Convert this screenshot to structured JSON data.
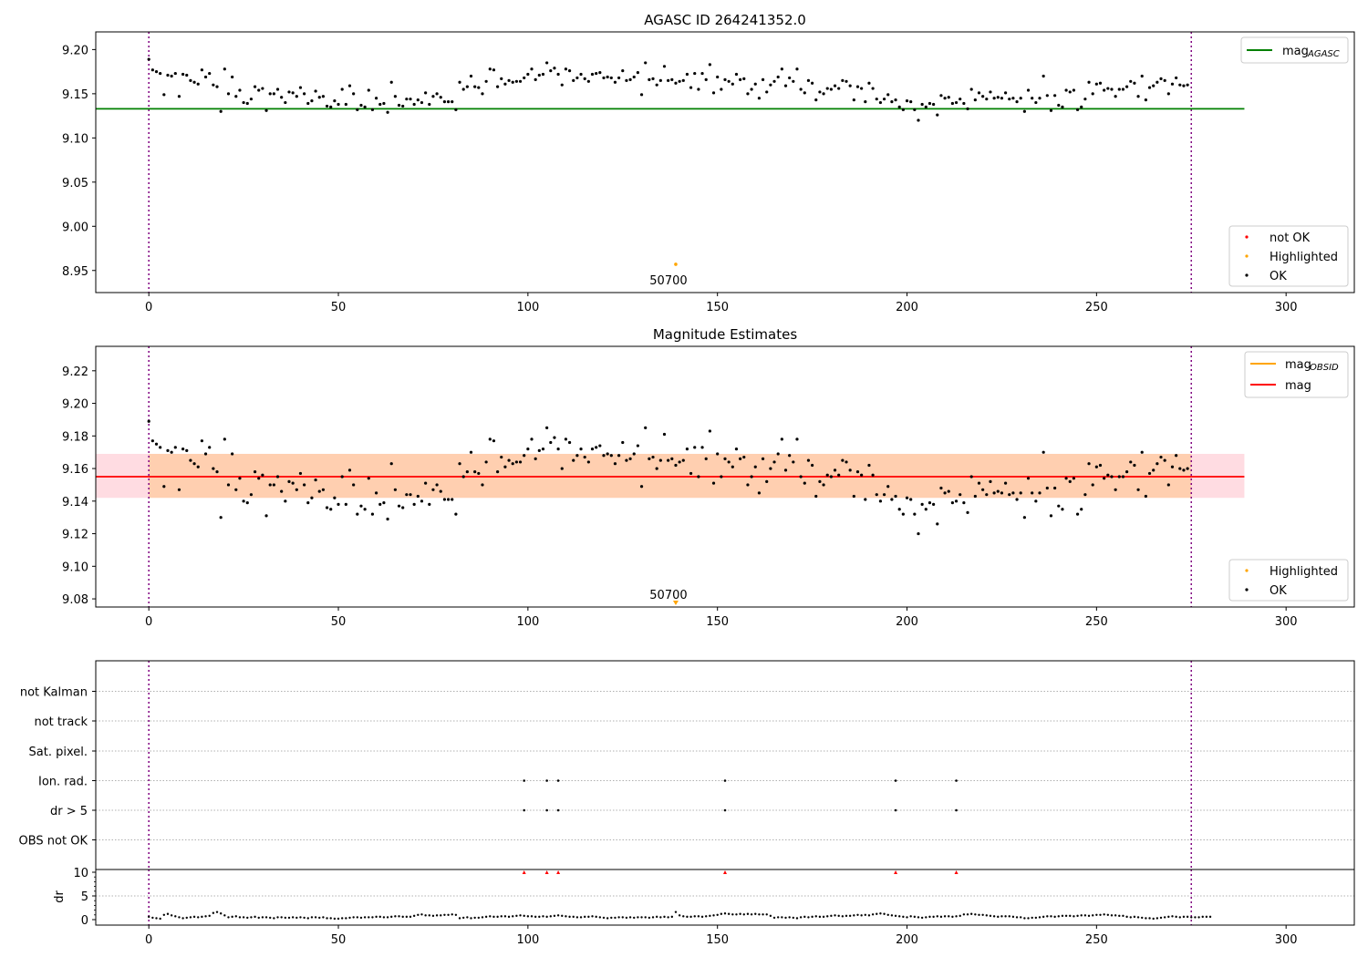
{
  "chart_data": [
    {
      "id": "top",
      "type": "scatter",
      "title": "AGASC ID 264241352.0",
      "xlim": [
        -14,
        318
      ],
      "ylim": [
        8.925,
        9.22
      ],
      "xticks": [
        0,
        50,
        100,
        150,
        200,
        250,
        300
      ],
      "xtick_labels": [
        "0",
        "50",
        "100",
        "150",
        "200",
        "250",
        "300"
      ],
      "yticks": [
        8.95,
        9.0,
        9.05,
        9.1,
        9.15,
        9.2
      ],
      "ytick_labels": [
        "8.95",
        "9.00",
        "9.05",
        "9.10",
        "9.15",
        "9.20"
      ],
      "vlines_x": [
        0,
        275
      ],
      "mag_agasc": 9.133,
      "mag_agasc_x": [
        -14,
        289
      ],
      "highlight": {
        "x": 139,
        "y": 8.957,
        "label": "50700"
      },
      "legend_upper": {
        "placement": "upper right",
        "entries": [
          {
            "label_main": "mag",
            "label_sub": "AGASC",
            "color": "#008000"
          }
        ]
      },
      "legend_lower": {
        "placement": "lower right",
        "entries": [
          {
            "label": "not OK",
            "color": "#ff0000"
          },
          {
            "label": "Highlighted",
            "color": "#ffa500"
          },
          {
            "label": "OK",
            "color": "#000000"
          }
        ]
      }
    },
    {
      "id": "middle",
      "type": "scatter",
      "title": "Magnitude Estimates",
      "xlim": [
        -14,
        318
      ],
      "ylim": [
        9.075,
        9.235
      ],
      "xticks": [
        0,
        50,
        100,
        150,
        200,
        250,
        300
      ],
      "xtick_labels": [
        "0",
        "50",
        "100",
        "150",
        "200",
        "250",
        "300"
      ],
      "yticks": [
        9.08,
        9.1,
        9.12,
        9.14,
        9.16,
        9.18,
        9.2,
        9.22
      ],
      "ytick_labels": [
        "9.08",
        "9.10",
        "9.12",
        "9.14",
        "9.16",
        "9.18",
        "9.20",
        "9.22"
      ],
      "vlines_x": [
        0,
        275
      ],
      "mag": 9.155,
      "mag_band": [
        9.142,
        9.169
      ],
      "obsid_band_x": [
        0,
        275
      ],
      "mag_x": [
        -14,
        289
      ],
      "highlight": {
        "x": 139,
        "y": 9.077,
        "label": "50700"
      },
      "legend_upper": {
        "placement": "upper right",
        "entries": [
          {
            "label_main": "mag",
            "label_sub": "OBSID",
            "color": "#ffa500"
          },
          {
            "label": "mag",
            "color": "#ff0000"
          }
        ]
      },
      "legend_lower": {
        "placement": "lower right",
        "entries": [
          {
            "label": "Highlighted",
            "color": "#ffa500"
          },
          {
            "label": "OK",
            "color": "#000000"
          }
        ]
      }
    },
    {
      "id": "flags",
      "type": "scatter",
      "xlim": [
        -14,
        318
      ],
      "categories": [
        "not Kalman",
        "not track",
        "Sat. pixel.",
        "Ion. rad.",
        "dr > 5",
        "OBS not OK"
      ],
      "flag_events": {
        "Ion. rad.": [
          99,
          105,
          108,
          152,
          197,
          213
        ],
        "dr > 5": [
          99,
          105,
          108,
          152,
          197,
          213
        ]
      },
      "vlines_x": [
        0,
        275
      ]
    },
    {
      "id": "dr",
      "type": "scatter",
      "xlim": [
        -14,
        318
      ],
      "ylim": [
        -0.5,
        10.5
      ],
      "ylabel": "dr",
      "yticks": [
        0,
        5,
        10
      ],
      "ytick_labels": [
        "0",
        "5",
        "10"
      ],
      "xticks": [
        0,
        50,
        100,
        150,
        200,
        250,
        300
      ],
      "xtick_labels": [
        "0",
        "50",
        "100",
        "150",
        "200",
        "250",
        "300"
      ],
      "clipped_x": [
        99,
        105,
        108,
        152,
        197,
        213
      ],
      "vlines_x": [
        0,
        275
      ],
      "dr_values": [
        0.6,
        0.4,
        0.3,
        0.2,
        1.0,
        1.2,
        0.9,
        0.7,
        0.5,
        0.3,
        0.4,
        0.5,
        0.6,
        0.5,
        0.6,
        0.7,
        0.8,
        1.4,
        1.6,
        1.3,
        0.9,
        0.5,
        0.6,
        0.7,
        0.5,
        0.5,
        0.4,
        0.5,
        0.6,
        0.4,
        0.5,
        0.5,
        0.4,
        0.3,
        0.5,
        0.5,
        0.4,
        0.4,
        0.5,
        0.4,
        0.5,
        0.4,
        0.3,
        0.5,
        0.5,
        0.4,
        0.5,
        0.3,
        0.3,
        0.2,
        0.2,
        0.3,
        0.3,
        0.4,
        0.5,
        0.5,
        0.4,
        0.5,
        0.5,
        0.5,
        0.6,
        0.6,
        0.5,
        0.5,
        0.6,
        0.7,
        0.7,
        0.6,
        0.6,
        0.6,
        0.8,
        1.0,
        1.1,
        0.9,
        0.9,
        0.8,
        0.9,
        0.9,
        1.0,
        1.0,
        1.1,
        1.0,
        0.3,
        0.4,
        0.5,
        0.3,
        0.4,
        0.4,
        0.5,
        0.6,
        0.7,
        0.6,
        0.6,
        0.7,
        0.7,
        0.6,
        0.7,
        0.8,
        0.9,
        0.8,
        0.7,
        0.7,
        0.6,
        0.6,
        0.7,
        0.6,
        0.7,
        0.8,
        0.9,
        0.8,
        0.7,
        0.6,
        0.6,
        0.5,
        0.5,
        0.6,
        0.6,
        0.7,
        0.6,
        0.5,
        0.4,
        0.3,
        0.4,
        0.4,
        0.5,
        0.5,
        0.4,
        0.5,
        0.4,
        0.5,
        0.5,
        0.5,
        0.4,
        0.5,
        0.6,
        0.5,
        0.6,
        0.5,
        0.6,
        1.6,
        0.9,
        0.7,
        0.6,
        0.6,
        0.7,
        0.7,
        0.6,
        0.7,
        0.8,
        0.9,
        1.0,
        1.2,
        1.3,
        1.2,
        1.1,
        1.1,
        1.2,
        1.1,
        1.2,
        1.1,
        1.2,
        1.1,
        1.1,
        1.1,
        0.8,
        0.4,
        0.5,
        0.5,
        0.4,
        0.5,
        0.4,
        0.3,
        0.5,
        0.6,
        0.5,
        0.6,
        0.7,
        0.6,
        0.6,
        0.7,
        0.8,
        0.9,
        0.8,
        0.7,
        0.8,
        0.8,
        0.9,
        1.0,
        0.9,
        1.0,
        0.9,
        1.1,
        1.2,
        1.3,
        1.2,
        1.0,
        0.9,
        0.8,
        0.7,
        0.6,
        0.5,
        0.7,
        0.6,
        0.5,
        0.4,
        0.5,
        0.6,
        0.6,
        0.7,
        0.6,
        0.7,
        0.7,
        0.6,
        0.7,
        0.8,
        1.1,
        1.1,
        1.2,
        1.1,
        1.0,
        1.0,
        0.9,
        0.8,
        0.7,
        0.6,
        0.7,
        0.7,
        0.7,
        0.6,
        0.5,
        0.5,
        0.3,
        0.3,
        0.4,
        0.4,
        0.5,
        0.6,
        0.7,
        0.7,
        0.6,
        0.7,
        0.8,
        0.8,
        0.8,
        0.7,
        0.8,
        0.9,
        0.9,
        0.8,
        0.9,
        1.0,
        1.0,
        1.1,
        1.0,
        0.9,
        0.9,
        0.8,
        0.8,
        0.6,
        0.5,
        0.6,
        0.5,
        0.4,
        0.3,
        0.3,
        0.2,
        0.3,
        0.4,
        0.5,
        0.6,
        0.7,
        0.6,
        0.5,
        0.6,
        0.6,
        0.5,
        0.5,
        0.5,
        0.6,
        0.6,
        0.6
      ]
    }
  ],
  "series_mag": [
    9.189,
    9.177,
    9.175,
    9.173,
    9.149,
    9.171,
    9.17,
    9.173,
    9.147,
    9.172,
    9.171,
    9.165,
    9.163,
    9.161,
    9.177,
    9.169,
    9.173,
    9.16,
    9.158,
    9.13,
    9.178,
    9.15,
    9.169,
    9.147,
    9.154,
    9.14,
    9.139,
    9.144,
    9.158,
    9.154,
    9.156,
    9.131,
    9.15,
    9.15,
    9.155,
    9.146,
    9.14,
    9.152,
    9.151,
    9.147,
    9.157,
    9.15,
    9.139,
    9.142,
    9.153,
    9.146,
    9.147,
    9.136,
    9.135,
    9.142,
    9.138,
    9.155,
    9.138,
    9.159,
    9.15,
    9.132,
    9.137,
    9.135,
    9.154,
    9.132,
    9.145,
    9.138,
    9.139,
    9.129,
    9.163,
    9.147,
    9.137,
    9.136,
    9.144,
    9.144,
    9.138,
    9.143,
    9.14,
    9.151,
    9.138,
    9.147,
    9.15,
    9.146,
    9.141,
    9.141,
    9.141,
    9.132,
    9.163,
    9.155,
    9.158,
    9.17,
    9.158,
    9.157,
    9.15,
    9.164,
    9.178,
    9.177,
    9.158,
    9.167,
    9.161,
    9.165,
    9.163,
    9.164,
    9.164,
    9.168,
    9.172,
    9.178,
    9.166,
    9.171,
    9.172,
    9.185,
    9.176,
    9.179,
    9.172,
    9.16,
    9.178,
    9.176,
    9.165,
    9.168,
    9.172,
    9.167,
    9.164,
    9.172,
    9.173,
    9.174,
    9.168,
    9.169,
    9.168,
    9.163,
    9.168,
    9.176,
    9.165,
    9.166,
    9.169,
    9.174,
    9.149,
    9.185,
    9.166,
    9.167,
    9.16,
    9.165,
    9.181,
    9.165,
    9.166,
    9.162,
    9.164,
    9.165,
    9.172,
    9.157,
    9.173,
    9.155,
    9.173,
    9.166,
    9.183,
    9.151,
    9.169,
    9.155,
    9.166,
    9.164,
    9.161,
    9.172,
    9.166,
    9.167,
    9.15,
    9.155,
    9.161,
    9.145,
    9.166,
    9.152,
    9.16,
    9.164,
    9.169,
    9.178,
    9.159,
    9.168,
    9.164,
    9.178,
    9.155,
    9.151,
    9.165,
    9.162,
    9.143,
    9.152,
    9.15,
    9.156,
    9.155,
    9.159,
    9.156,
    9.165,
    9.164,
    9.159,
    9.143,
    9.158,
    9.156,
    9.141,
    9.162,
    9.156,
    9.144,
    9.14,
    9.144,
    9.149,
    9.141,
    9.143,
    9.135,
    9.132,
    9.142,
    9.141,
    9.132,
    9.12,
    9.138,
    9.135,
    9.139,
    9.138,
    9.126,
    9.148,
    9.145,
    9.146,
    9.139,
    9.14,
    9.144,
    9.139,
    9.133,
    9.155,
    9.143,
    9.151,
    9.147,
    9.144,
    9.152,
    9.145,
    9.146,
    9.145,
    9.151,
    9.144,
    9.145,
    9.141,
    9.145,
    9.13,
    9.154,
    9.145,
    9.14,
    9.145,
    9.17,
    9.148,
    9.131,
    9.148,
    9.137,
    9.135,
    9.154,
    9.152,
    9.154,
    9.132,
    9.135,
    9.144,
    9.163,
    9.15,
    9.161,
    9.162,
    9.154,
    9.156,
    9.155,
    9.147,
    9.155,
    9.155,
    9.158,
    9.164,
    9.162,
    9.147,
    9.17,
    9.143,
    9.157,
    9.159,
    9.163,
    9.167,
    9.165,
    9.15,
    9.161,
    9.168,
    9.16,
    9.159,
    9.16
  ]
}
